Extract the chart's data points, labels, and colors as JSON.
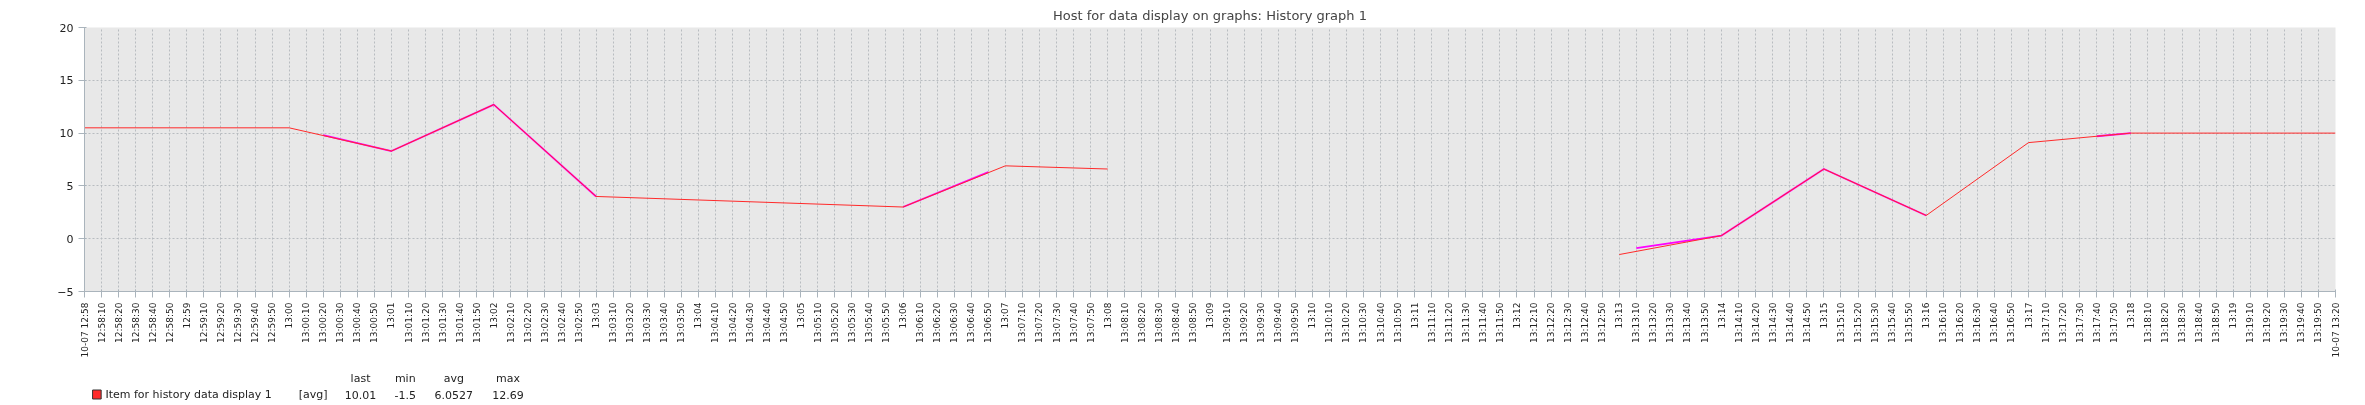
{
  "chart_data": {
    "type": "line",
    "title": "Host for data display on graphs: History graph 1",
    "series": [
      {
        "name": "Item for history data display 1",
        "color": "#ff2a2a",
        "x": [
          12.966667,
          13.0,
          13.016667,
          13.033333,
          13.05,
          13.1,
          13.116667,
          13.133333,
          13.175,
          13.216667,
          13.233333,
          13.25,
          13.266667,
          13.283333,
          13.3,
          13.333333
        ],
        "values": [
          10.5,
          10.5,
          8.3,
          12.7,
          4,
          3,
          6.9,
          6.6,
          null,
          -1.5,
          0.3,
          6.6,
          2.2,
          9.1,
          10,
          10
        ]
      },
      {
        "color": "#ff00ff",
        "x": [
          13.005556,
          13.016667,
          13.033333,
          13.05,
          13.075,
          13.1,
          13.113889,
          13.175,
          13.219444,
          13.233333,
          13.25,
          13.266667,
          13.28,
          13.294444,
          13.3
        ],
        "values": [
          9.8,
          8.3,
          12.7,
          4,
          null,
          3,
          6.3,
          null,
          -0.9,
          0.3,
          6.6,
          2.2,
          null,
          9.7,
          10
        ]
      }
    ],
    "xlim": [
      12.966667,
      13.333333
    ],
    "ylim": [
      -5,
      20
    ],
    "yticks": [
      -5,
      0,
      5,
      10,
      15,
      20
    ],
    "xticks": [
      {
        "value": 12.966667,
        "label": "10-07 12:58"
      },
      {
        "value": 12.969444,
        "label": "12:58:10"
      },
      {
        "value": 12.972222,
        "label": "12:58:20"
      },
      {
        "value": 12.975,
        "label": "12:58:30"
      },
      {
        "value": 12.977778,
        "label": "12:58:40"
      },
      {
        "value": 12.980556,
        "label": "12:58:50"
      },
      {
        "value": 12.983333,
        "label": "12:59"
      },
      {
        "value": 12.986111,
        "label": "12:59:10"
      },
      {
        "value": 12.988889,
        "label": "12:59:20"
      },
      {
        "value": 12.991667,
        "label": "12:59:30"
      },
      {
        "value": 12.994444,
        "label": "12:59:40"
      },
      {
        "value": 12.997222,
        "label": "12:59:50"
      },
      {
        "value": 13.0,
        "label": "13:00"
      },
      {
        "value": 13.002778,
        "label": "13:00:10"
      },
      {
        "value": 13.005556,
        "label": "13:00:20"
      },
      {
        "value": 13.008333,
        "label": "13:00:30"
      },
      {
        "value": 13.011111,
        "label": "13:00:40"
      },
      {
        "value": 13.013889,
        "label": "13:00:50"
      },
      {
        "value": 13.016667,
        "label": "13:01"
      },
      {
        "value": 13.019444,
        "label": "13:01:10"
      },
      {
        "value": 13.022222,
        "label": "13:01:20"
      },
      {
        "value": 13.025,
        "label": "13:01:30"
      },
      {
        "value": 13.027778,
        "label": "13:01:40"
      },
      {
        "value": 13.030556,
        "label": "13:01:50"
      },
      {
        "value": 13.033333,
        "label": "13:02"
      },
      {
        "value": 13.036111,
        "label": "13:02:10"
      },
      {
        "value": 13.038889,
        "label": "13:02:20"
      },
      {
        "value": 13.041667,
        "label": "13:02:30"
      },
      {
        "value": 13.044444,
        "label": "13:02:40"
      },
      {
        "value": 13.047222,
        "label": "13:02:50"
      },
      {
        "value": 13.05,
        "label": "13:03"
      },
      {
        "value": 13.052778,
        "label": "13:03:10"
      },
      {
        "value": 13.055556,
        "label": "13:03:20"
      },
      {
        "value": 13.058333,
        "label": "13:03:30"
      },
      {
        "value": 13.061111,
        "label": "13:03:40"
      },
      {
        "value": 13.063889,
        "label": "13:03:50"
      },
      {
        "value": 13.066667,
        "label": "13:04"
      },
      {
        "value": 13.069444,
        "label": "13:04:10"
      },
      {
        "value": 13.072222,
        "label": "13:04:20"
      },
      {
        "value": 13.075,
        "label": "13:04:30"
      },
      {
        "value": 13.077778,
        "label": "13:04:40"
      },
      {
        "value": 13.080556,
        "label": "13:04:50"
      },
      {
        "value": 13.083333,
        "label": "13:05"
      },
      {
        "value": 13.086111,
        "label": "13:05:10"
      },
      {
        "value": 13.088889,
        "label": "13:05:20"
      },
      {
        "value": 13.091667,
        "label": "13:05:30"
      },
      {
        "value": 13.094444,
        "label": "13:05:40"
      },
      {
        "value": 13.097222,
        "label": "13:05:50"
      },
      {
        "value": 13.1,
        "label": "13:06"
      },
      {
        "value": 13.102778,
        "label": "13:06:10"
      },
      {
        "value": 13.105556,
        "label": "13:06:20"
      },
      {
        "value": 13.108333,
        "label": "13:06:30"
      },
      {
        "value": 13.111111,
        "label": "13:06:40"
      },
      {
        "value": 13.113889,
        "label": "13:06:50"
      },
      {
        "value": 13.116667,
        "label": "13:07"
      },
      {
        "value": 13.119444,
        "label": "13:07:10"
      },
      {
        "value": 13.122222,
        "label": "13:07:20"
      },
      {
        "value": 13.125,
        "label": "13:07:30"
      },
      {
        "value": 13.127778,
        "label": "13:07:40"
      },
      {
        "value": 13.130556,
        "label": "13:07:50"
      },
      {
        "value": 13.133333,
        "label": "13:08"
      },
      {
        "value": 13.136111,
        "label": "13:08:10"
      },
      {
        "value": 13.138889,
        "label": "13:08:20"
      },
      {
        "value": 13.141667,
        "label": "13:08:30"
      },
      {
        "value": 13.144444,
        "label": "13:08:40"
      },
      {
        "value": 13.147222,
        "label": "13:08:50"
      },
      {
        "value": 13.15,
        "label": "13:09"
      },
      {
        "value": 13.152778,
        "label": "13:09:10"
      },
      {
        "value": 13.155556,
        "label": "13:09:20"
      },
      {
        "value": 13.158333,
        "label": "13:09:30"
      },
      {
        "value": 13.161111,
        "label": "13:09:40"
      },
      {
        "value": 13.163889,
        "label": "13:09:50"
      },
      {
        "value": 13.166667,
        "label": "13:10"
      },
      {
        "value": 13.169444,
        "label": "13:10:10"
      },
      {
        "value": 13.172222,
        "label": "13:10:20"
      },
      {
        "value": 13.175,
        "label": "13:10:30"
      },
      {
        "value": 13.177778,
        "label": "13:10:40"
      },
      {
        "value": 13.180556,
        "label": "13:10:50"
      },
      {
        "value": 13.183333,
        "label": "13:11"
      },
      {
        "value": 13.186111,
        "label": "13:11:10"
      },
      {
        "value": 13.188889,
        "label": "13:11:20"
      },
      {
        "value": 13.191667,
        "label": "13:11:30"
      },
      {
        "value": 13.194444,
        "label": "13:11:40"
      },
      {
        "value": 13.197222,
        "label": "13:11:50"
      },
      {
        "value": 13.2,
        "label": "13:12"
      },
      {
        "value": 13.202778,
        "label": "13:12:10"
      },
      {
        "value": 13.205556,
        "label": "13:12:20"
      },
      {
        "value": 13.208333,
        "label": "13:12:30"
      },
      {
        "value": 13.211111,
        "label": "13:12:40"
      },
      {
        "value": 13.213889,
        "label": "13:12:50"
      },
      {
        "value": 13.216667,
        "label": "13:13"
      },
      {
        "value": 13.219444,
        "label": "13:13:10"
      },
      {
        "value": 13.222222,
        "label": "13:13:20"
      },
      {
        "value": 13.225,
        "label": "13:13:30"
      },
      {
        "value": 13.227778,
        "label": "13:13:40"
      },
      {
        "value": 13.230556,
        "label": "13:13:50"
      },
      {
        "value": 13.233333,
        "label": "13:14"
      },
      {
        "value": 13.236111,
        "label": "13:14:10"
      },
      {
        "value": 13.238889,
        "label": "13:14:20"
      },
      {
        "value": 13.241667,
        "label": "13:14:30"
      },
      {
        "value": 13.244444,
        "label": "13:14:40"
      },
      {
        "value": 13.247222,
        "label": "13:14:50"
      },
      {
        "value": 13.25,
        "label": "13:15"
      },
      {
        "value": 13.252778,
        "label": "13:15:10"
      },
      {
        "value": 13.255556,
        "label": "13:15:20"
      },
      {
        "value": 13.258333,
        "label": "13:15:30"
      },
      {
        "value": 13.261111,
        "label": "13:15:40"
      },
      {
        "value": 13.263889,
        "label": "13:15:50"
      },
      {
        "value": 13.266667,
        "label": "13:16"
      },
      {
        "value": 13.269444,
        "label": "13:16:10"
      },
      {
        "value": 13.272222,
        "label": "13:16:20"
      },
      {
        "value": 13.275,
        "label": "13:16:30"
      },
      {
        "value": 13.277778,
        "label": "13:16:40"
      },
      {
        "value": 13.280556,
        "label": "13:16:50"
      },
      {
        "value": 13.283333,
        "label": "13:17"
      },
      {
        "value": 13.286111,
        "label": "13:17:10"
      },
      {
        "value": 13.288889,
        "label": "13:17:20"
      },
      {
        "value": 13.291667,
        "label": "13:17:30"
      },
      {
        "value": 13.294444,
        "label": "13:17:40"
      },
      {
        "value": 13.297222,
        "label": "13:17:50"
      },
      {
        "value": 13.3,
        "label": "13:18"
      },
      {
        "value": 13.302778,
        "label": "13:18:10"
      },
      {
        "value": 13.305556,
        "label": "13:18:20"
      },
      {
        "value": 13.308333,
        "label": "13:18:30"
      },
      {
        "value": 13.311111,
        "label": "13:18:40"
      },
      {
        "value": 13.313889,
        "label": "13:18:50"
      },
      {
        "value": 13.316667,
        "label": "13:19"
      },
      {
        "value": 13.319444,
        "label": "13:19:10"
      },
      {
        "value": 13.322222,
        "label": "13:19:20"
      },
      {
        "value": 13.325,
        "label": "13:19:30"
      },
      {
        "value": 13.327778,
        "label": "13:19:40"
      },
      {
        "value": 13.330556,
        "label": "13:19:50"
      },
      {
        "value": 13.333333,
        "label": "10-07 13:20"
      }
    ],
    "grid": true,
    "legend": "bottom left",
    "annotations": [
      "[avg]",
      "last",
      "min",
      "avg",
      "max",
      "10.01",
      "-1.5",
      "6.0527",
      "12.69"
    ]
  }
}
